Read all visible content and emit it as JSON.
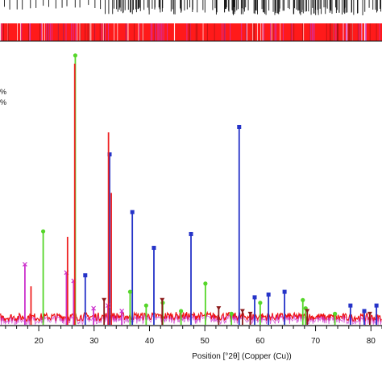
{
  "chart_data": {
    "type": "line",
    "xlabel": "Position [°2θ] (Copper (Cu))",
    "xlim": [
      13,
      82
    ],
    "ylim": [
      0,
      100
    ],
    "x_ticks": [
      20,
      30,
      40,
      50,
      60,
      70,
      80
    ],
    "legend_fragments": [
      "%",
      "%"
    ],
    "colors": {
      "background": "#ffffff",
      "axis": "#111111",
      "reference_band": "#ff1a1a",
      "baseline": "#ee1111",
      "phase_blue": "#2533c8",
      "phase_green": "#56d62a",
      "phase_magenta": "#cc33cc",
      "phase_red": "#ee2222",
      "phase_darkred": "#8b1a1a"
    },
    "series": [
      {
        "color": "#2533c8",
        "marker": "square",
        "peaks": [
          {
            "x": 28.4,
            "y": 18
          },
          {
            "x": 32.8,
            "y": 62
          },
          {
            "x": 36.9,
            "y": 41
          },
          {
            "x": 40.8,
            "y": 28
          },
          {
            "x": 47.5,
            "y": 33
          },
          {
            "x": 56.2,
            "y": 72
          },
          {
            "x": 59.0,
            "y": 10
          },
          {
            "x": 61.5,
            "y": 11
          },
          {
            "x": 64.4,
            "y": 12
          },
          {
            "x": 76.3,
            "y": 7
          },
          {
            "x": 78.8,
            "y": 5
          },
          {
            "x": 81.0,
            "y": 7
          }
        ]
      },
      {
        "color": "#56d62a",
        "marker": "circle",
        "peaks": [
          {
            "x": 20.8,
            "y": 34
          },
          {
            "x": 26.6,
            "y": 98
          },
          {
            "x": 36.5,
            "y": 12
          },
          {
            "x": 39.4,
            "y": 7
          },
          {
            "x": 42.4,
            "y": 8
          },
          {
            "x": 45.7,
            "y": 5
          },
          {
            "x": 50.1,
            "y": 15
          },
          {
            "x": 54.8,
            "y": 4
          },
          {
            "x": 60.0,
            "y": 8
          },
          {
            "x": 67.7,
            "y": 9
          },
          {
            "x": 68.2,
            "y": 6
          },
          {
            "x": 73.5,
            "y": 4
          }
        ]
      },
      {
        "color": "#cc33cc",
        "marker": "x",
        "peaks": [
          {
            "x": 17.5,
            "y": 22
          },
          {
            "x": 25.0,
            "y": 19
          },
          {
            "x": 26.3,
            "y": 16
          },
          {
            "x": 29.9,
            "y": 6
          },
          {
            "x": 32.5,
            "y": 7
          },
          {
            "x": 35.0,
            "y": 5
          }
        ]
      },
      {
        "color": "#ee2222",
        "marker": "none",
        "peaks": [
          {
            "x": 18.6,
            "y": 14
          },
          {
            "x": 25.2,
            "y": 32
          },
          {
            "x": 26.5,
            "y": 95
          },
          {
            "x": 32.6,
            "y": 70
          },
          {
            "x": 33.1,
            "y": 48
          }
        ]
      },
      {
        "color": "#8b1a1a",
        "marker": "triangle-down",
        "peaks": [
          {
            "x": 31.8,
            "y": 9
          },
          {
            "x": 42.3,
            "y": 9
          },
          {
            "x": 52.5,
            "y": 6
          },
          {
            "x": 56.8,
            "y": 5
          },
          {
            "x": 58.2,
            "y": 4
          },
          {
            "x": 68.5,
            "y": 5
          },
          {
            "x": 79.8,
            "y": 4
          }
        ]
      }
    ]
  }
}
